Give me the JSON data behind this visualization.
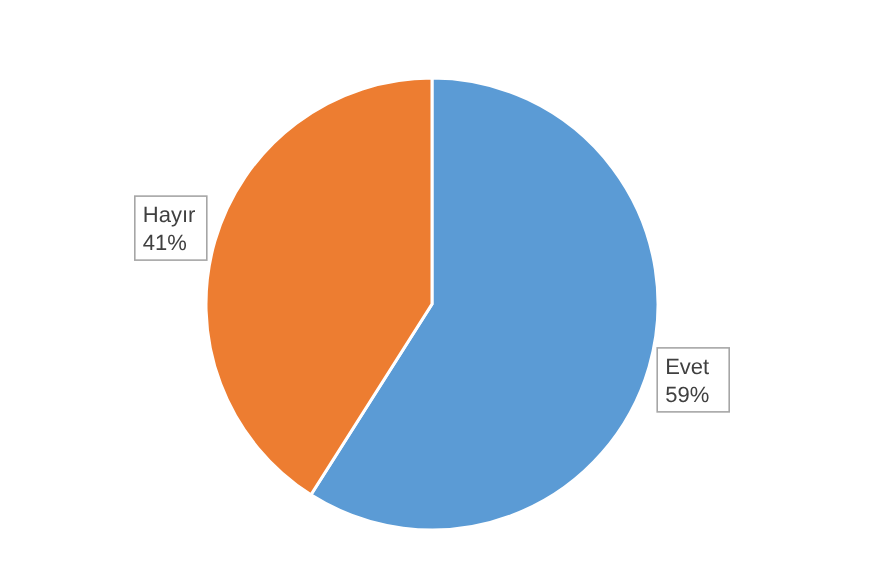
{
  "chart_data": {
    "type": "pie",
    "categories": [
      "Evet",
      "Hayır"
    ],
    "values": [
      59,
      41
    ],
    "colors": [
      "#5b9bd5",
      "#ed7d31"
    ],
    "value_labels": [
      "59%",
      "41%"
    ],
    "legend": false
  }
}
